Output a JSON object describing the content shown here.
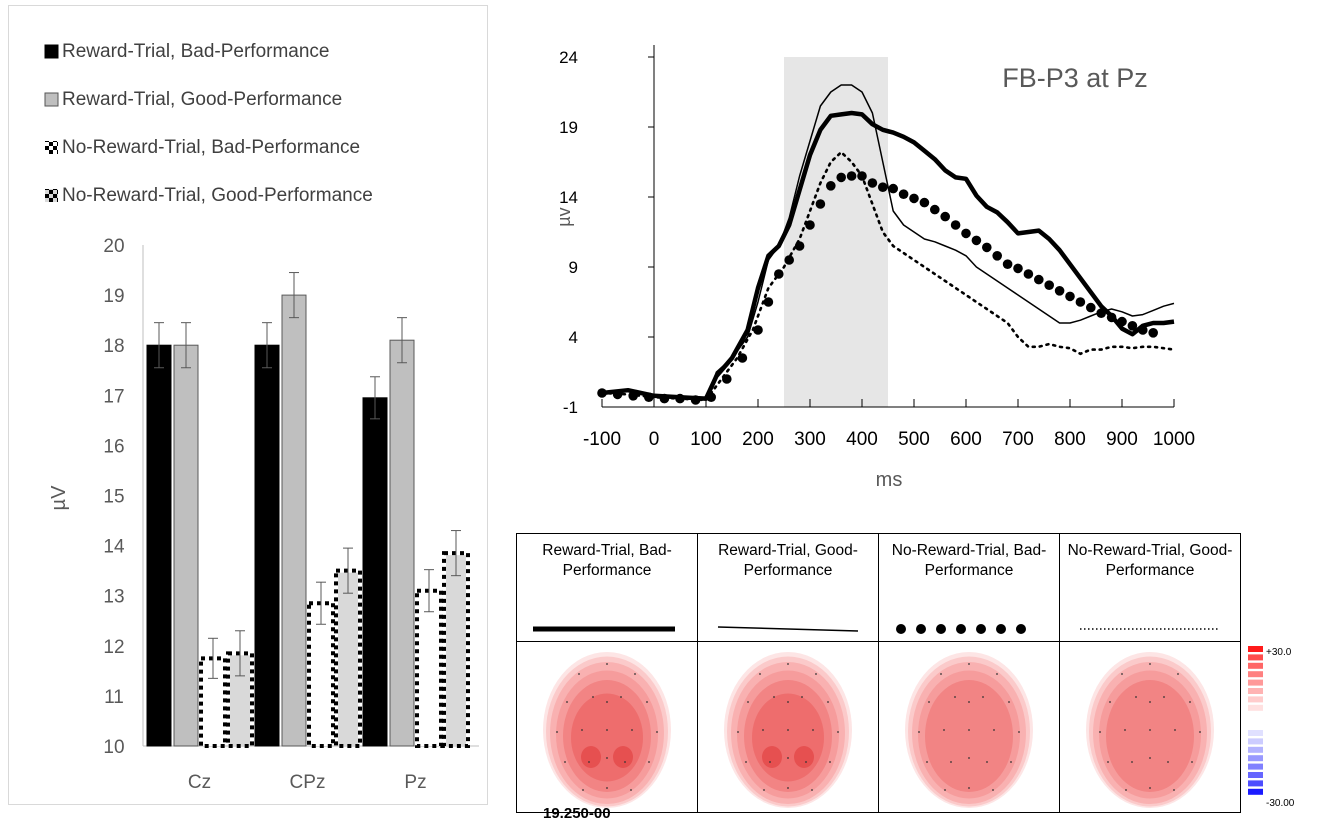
{
  "chart_data": [
    {
      "type": "bar",
      "title": "",
      "ylabel": "µV",
      "xlabel": "",
      "ylim": [
        10,
        20
      ],
      "yticks": [
        10,
        11,
        12,
        13,
        14,
        15,
        16,
        17,
        18,
        19,
        20
      ],
      "categories": [
        "Cz",
        "CPz",
        "Pz"
      ],
      "legend_position": "top",
      "series": [
        {
          "name": "Reward-Trial, Bad-Performance",
          "values": [
            18.0,
            18.0,
            16.95
          ],
          "errors": [
            0.45,
            0.45,
            0.42
          ],
          "color": "#000000",
          "fill": "solid"
        },
        {
          "name": "Reward-Trial, Good-Performance",
          "values": [
            18.0,
            19.0,
            18.1
          ],
          "errors": [
            0.45,
            0.45,
            0.45
          ],
          "color": "#bfbfbf",
          "fill": "solid"
        },
        {
          "name": "No-Reward-Trial, Bad-Performance",
          "values": [
            11.75,
            12.85,
            13.1
          ],
          "errors": [
            0.4,
            0.42,
            0.42
          ],
          "color": "#ffffff",
          "fill": "dashed-outline"
        },
        {
          "name": "No-Reward-Trial, Good-Performance",
          "values": [
            11.85,
            13.5,
            13.85
          ],
          "errors": [
            0.45,
            0.45,
            0.45
          ],
          "color": "#d9d9d9",
          "fill": "dashed-outline"
        }
      ]
    },
    {
      "type": "line",
      "title": "FB-P3 at Pz",
      "xlabel": "ms",
      "ylabel": "µv",
      "xlim": [
        -100,
        1000
      ],
      "ylim": [
        -1,
        24
      ],
      "xticks": [
        -100,
        0,
        100,
        200,
        300,
        400,
        500,
        600,
        700,
        800,
        900,
        1000
      ],
      "yticks": [
        -1,
        4,
        9,
        14,
        19,
        24
      ],
      "highlight_window": [
        250,
        450
      ],
      "grid": false,
      "series": [
        {
          "name": "Reward-Trial, Bad-Performance",
          "style": "thick",
          "x": [
            -100,
            -50,
            0,
            50,
            100,
            120,
            150,
            180,
            200,
            220,
            240,
            260,
            280,
            300,
            320,
            340,
            360,
            380,
            400,
            420,
            440,
            460,
            480,
            500,
            520,
            540,
            560,
            580,
            600,
            620,
            640,
            660,
            680,
            700,
            720,
            740,
            760,
            780,
            800,
            820,
            840,
            860,
            880,
            900,
            920,
            940,
            960,
            980,
            1000
          ],
          "y": [
            0,
            0.2,
            -0.2,
            -0.3,
            -0.4,
            1.2,
            2.5,
            4.5,
            7.5,
            9.8,
            10.5,
            12,
            14.5,
            17,
            18.8,
            19.8,
            19.9,
            20,
            19.9,
            19.2,
            18.8,
            18.6,
            18.3,
            17.9,
            17.3,
            16.7,
            15.9,
            15.4,
            15.3,
            14.1,
            13.3,
            12.9,
            12.2,
            11.4,
            11.5,
            11.6,
            11,
            10.2,
            9.2,
            8.2,
            7.2,
            6.2,
            5.5,
            4.6,
            4.2,
            4.8,
            5,
            5,
            5.1
          ]
        },
        {
          "name": "Reward-Trial, Good-Performance",
          "style": "thin",
          "x": [
            -100,
            -50,
            0,
            50,
            100,
            120,
            150,
            180,
            200,
            220,
            240,
            260,
            280,
            300,
            320,
            340,
            360,
            380,
            400,
            420,
            440,
            460,
            480,
            500,
            520,
            540,
            560,
            580,
            600,
            620,
            640,
            660,
            680,
            700,
            720,
            740,
            760,
            780,
            800,
            820,
            840,
            860,
            880,
            900,
            920,
            940,
            960,
            980,
            1000
          ],
          "y": [
            0,
            0.1,
            -0.2,
            -0.4,
            -0.5,
            1.5,
            2.5,
            4,
            6.5,
            9.5,
            10.5,
            12.5,
            15.5,
            18,
            20.5,
            21.5,
            22,
            22,
            21.5,
            20,
            16.5,
            13,
            12,
            11.5,
            11,
            10.8,
            10.5,
            10.2,
            9.8,
            9,
            8.5,
            8,
            7.5,
            7,
            6.5,
            6,
            5.5,
            5,
            5,
            5.2,
            5.5,
            5.8,
            6,
            5.8,
            5.5,
            5.6,
            5.9,
            6.2,
            6.4
          ]
        },
        {
          "name": "No-Reward-Trial, Bad-Performance",
          "style": "large-dots",
          "x": [
            -100,
            -70,
            -40,
            -10,
            20,
            50,
            80,
            110,
            140,
            170,
            200,
            220,
            240,
            260,
            280,
            300,
            320,
            340,
            360,
            380,
            400,
            420,
            440,
            460,
            480,
            500,
            520,
            540,
            560,
            580,
            600,
            620,
            640,
            660,
            680,
            700,
            720,
            740,
            760,
            780,
            800,
            820,
            840,
            860,
            880,
            900,
            920,
            940,
            960
          ],
          "y": [
            0,
            -0.1,
            -0.2,
            -0.3,
            -0.4,
            -0.4,
            -0.5,
            -0.3,
            1,
            2.5,
            4.5,
            6.5,
            8.5,
            9.5,
            10.5,
            12,
            13.5,
            14.8,
            15.4,
            15.5,
            15.5,
            15,
            14.7,
            14.6,
            14.2,
            13.9,
            13.6,
            13.1,
            12.6,
            12,
            11.4,
            10.9,
            10.4,
            9.8,
            9.2,
            8.9,
            8.5,
            8.1,
            7.7,
            7.3,
            6.9,
            6.5,
            6.1,
            5.7,
            5.4,
            5.1,
            4.8,
            4.5,
            4.3
          ]
        },
        {
          "name": "No-Reward-Trial, Good-Performance",
          "style": "small-dots",
          "x": [
            -100,
            -50,
            0,
            50,
            100,
            130,
            160,
            190,
            220,
            250,
            280,
            300,
            320,
            340,
            360,
            380,
            400,
            420,
            440,
            460,
            480,
            500,
            520,
            540,
            560,
            580,
            600,
            620,
            640,
            660,
            680,
            700,
            720,
            740,
            760,
            780,
            800,
            820,
            840,
            860,
            880,
            900,
            920,
            940,
            960,
            980,
            1000
          ],
          "y": [
            0,
            -0.1,
            -0.3,
            -0.4,
            -0.5,
            1,
            2.5,
            4.5,
            7.5,
            9,
            11,
            13,
            15,
            16.5,
            17.2,
            16.5,
            15.5,
            13.5,
            11.5,
            10.5,
            10,
            9.5,
            9,
            8.5,
            8,
            7.5,
            7,
            6.5,
            6,
            5.5,
            5,
            4,
            3.3,
            3.3,
            3.5,
            3.3,
            3.2,
            2.8,
            3.1,
            3.1,
            3.3,
            3.3,
            3.2,
            3.3,
            3.3,
            3.2,
            3.1
          ]
        }
      ]
    }
  ],
  "topomaps": {
    "columns": [
      {
        "label": "Reward-Trial, Bad-Performance",
        "line_style": "thick",
        "intensity": 1.0
      },
      {
        "label": "Reward-Trial, Good-Performance",
        "line_style": "thin",
        "intensity": 1.05
      },
      {
        "label": "No-Reward-Trial, Bad-Performance",
        "line_style": "large-dots",
        "intensity": 0.7
      },
      {
        "label": "No-Reward-Trial, Good-Performance",
        "line_style": "small-dots",
        "intensity": 0.72
      }
    ],
    "time_label": "19.250-00"
  },
  "color_scale": {
    "max_label": "+30.0",
    "min_label": "-30.00",
    "pos_color": "#ff0000",
    "neg_color": "#0000ff"
  }
}
